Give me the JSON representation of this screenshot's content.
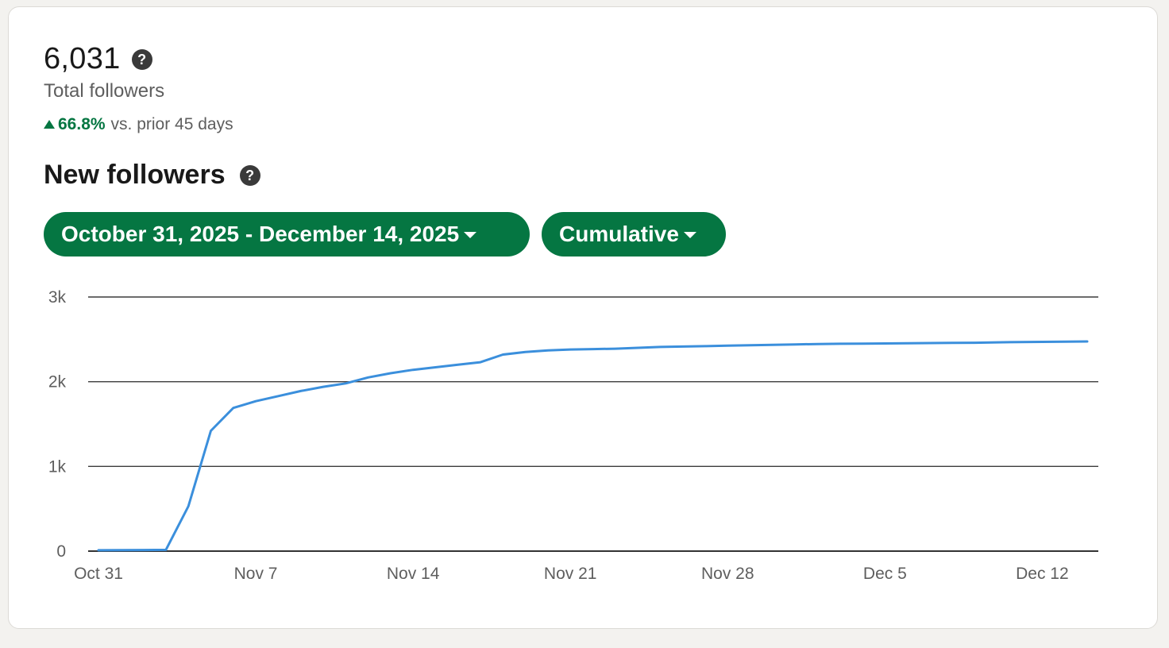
{
  "summary": {
    "total_value": "6,031",
    "total_label": "Total followers",
    "change_value": "66.8%",
    "change_suffix": "vs. prior 45 days",
    "help_icon": "question-circle-icon"
  },
  "section": {
    "title": "New followers"
  },
  "controls": {
    "date_range_label": "October 31, 2025 - December 14, 2025",
    "mode_label": "Cumulative",
    "caret_icon": "caret-down-icon"
  },
  "colors": {
    "accent": "#057642",
    "line": "#3b8fdc"
  },
  "chart_data": {
    "type": "line",
    "ylim": [
      0,
      3000
    ],
    "y_ticks": [
      {
        "value": 0,
        "label": "0"
      },
      {
        "value": 1000,
        "label": "1k"
      },
      {
        "value": 2000,
        "label": "2k"
      },
      {
        "value": 3000,
        "label": "3k"
      }
    ],
    "x_ticks": [
      {
        "day": 0,
        "label": "Oct 31"
      },
      {
        "day": 7,
        "label": "Nov 7"
      },
      {
        "day": 14,
        "label": "Nov 14"
      },
      {
        "day": 21,
        "label": "Nov 21"
      },
      {
        "day": 28,
        "label": "Nov 28"
      },
      {
        "day": 35,
        "label": "Dec 5"
      },
      {
        "day": 42,
        "label": "Dec 12"
      }
    ],
    "x_range_days": [
      0,
      44
    ],
    "values": [
      10,
      12,
      13,
      15,
      530,
      1420,
      1690,
      1770,
      1830,
      1890,
      1940,
      1980,
      2050,
      2100,
      2140,
      2170,
      2200,
      2230,
      2320,
      2350,
      2370,
      2380,
      2385,
      2390,
      2400,
      2410,
      2415,
      2420,
      2425,
      2430,
      2435,
      2440,
      2445,
      2448,
      2450,
      2452,
      2454,
      2456,
      2458,
      2460,
      2465,
      2468,
      2470,
      2473,
      2475
    ]
  }
}
